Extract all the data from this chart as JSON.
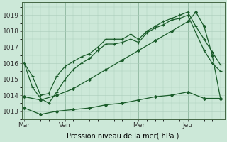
{
  "bg_color": "#cce8d8",
  "grid_color": "#aaccbb",
  "line_color": "#1a5c2a",
  "xlabel": "Pression niveau de la mer( hPa )",
  "xlabel_fontsize": 7,
  "yticks": [
    1013,
    1014,
    1015,
    1016,
    1017,
    1018,
    1019
  ],
  "ylim": [
    1012.5,
    1019.8
  ],
  "xtick_labels": [
    "Mar",
    "Ven",
    "Mer",
    "Jeu"
  ],
  "xtick_positions": [
    0,
    5,
    14,
    20
  ],
  "xlim": [
    -0.3,
    24.5
  ],
  "vlines": [
    0,
    5,
    14,
    20
  ],
  "series": [
    {
      "x": [
        0,
        1,
        2,
        3,
        4,
        5,
        6,
        7,
        8,
        9,
        10,
        11,
        12,
        13,
        14,
        15,
        16,
        17,
        18,
        19,
        20,
        21,
        22,
        23,
        24
      ],
      "y": [
        1016.0,
        1015.2,
        1014.0,
        1014.1,
        1015.2,
        1015.8,
        1016.1,
        1016.4,
        1016.6,
        1017.0,
        1017.5,
        1017.5,
        1017.5,
        1017.8,
        1017.5,
        1018.0,
        1018.3,
        1018.6,
        1018.8,
        1019.0,
        1019.2,
        1018.3,
        1017.5,
        1016.7,
        1015.9
      ],
      "marker": "+",
      "markersize": 3.5,
      "lw": 0.9
    },
    {
      "x": [
        0,
        1,
        2,
        3,
        4,
        5,
        6,
        7,
        8,
        9,
        10,
        11,
        12,
        13,
        14,
        15,
        16,
        17,
        18,
        19,
        20,
        21,
        22,
        23,
        24
      ],
      "y": [
        1016.0,
        1014.5,
        1013.8,
        1013.5,
        1014.2,
        1015.0,
        1015.6,
        1016.0,
        1016.3,
        1016.8,
        1017.2,
        1017.2,
        1017.3,
        1017.5,
        1017.3,
        1017.9,
        1018.2,
        1018.4,
        1018.7,
        1018.8,
        1019.0,
        1017.9,
        1016.8,
        1016.0,
        1015.5
      ],
      "marker": "+",
      "markersize": 3.5,
      "lw": 0.9
    },
    {
      "x": [
        0,
        2,
        4,
        6,
        8,
        10,
        12,
        14,
        16,
        18,
        20,
        21,
        22,
        23,
        24
      ],
      "y": [
        1013.9,
        1013.7,
        1014.0,
        1014.4,
        1015.0,
        1015.6,
        1016.2,
        1016.8,
        1017.4,
        1018.0,
        1018.6,
        1019.2,
        1018.3,
        1016.5,
        1013.8
      ],
      "marker": "D",
      "markersize": 2.0,
      "lw": 0.9
    },
    {
      "x": [
        0,
        2,
        4,
        6,
        8,
        10,
        12,
        14,
        16,
        18,
        20,
        22,
        24
      ],
      "y": [
        1013.2,
        1012.8,
        1013.0,
        1013.1,
        1013.2,
        1013.4,
        1013.5,
        1013.7,
        1013.9,
        1014.0,
        1014.2,
        1013.8,
        1013.8
      ],
      "marker": "D",
      "markersize": 2.0,
      "lw": 0.9
    }
  ]
}
